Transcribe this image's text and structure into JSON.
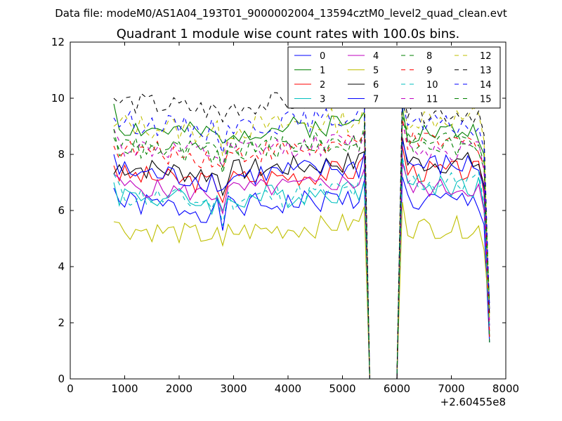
{
  "suptitle": "Data file: modeM0/AS1A04_193T01_9000002004_13594cztM0_level2_quad_clean.evt",
  "chart_data": {
    "type": "line",
    "title": "Quadrant 1 module wise count rates with 100.0s bins.",
    "xlabel": "",
    "ylabel": "",
    "x_offset_label": "+2.60455e8",
    "xlim": [
      0,
      8000
    ],
    "ylim": [
      0,
      12
    ],
    "x_ticks": [
      "0",
      "1000",
      "2000",
      "3000",
      "4000",
      "5000",
      "6000",
      "7000",
      "8000"
    ],
    "y_ticks": [
      "0",
      "2",
      "4",
      "6",
      "8",
      "10",
      "12"
    ],
    "legend_position": "top-right",
    "segments": [
      {
        "x_start": 800,
        "x_end": 5400,
        "step": 100
      },
      {
        "x_start": 5500,
        "x_end": 6000,
        "step": 100
      },
      {
        "x_start": 6100,
        "x_end": 7700,
        "step": 100
      }
    ],
    "series": [
      {
        "name": "0",
        "color": "#0000ff",
        "dash": "solid",
        "mean": 6.3,
        "amp": 0.45,
        "post_mean": 6.3,
        "start": 6.8,
        "seed": 1
      },
      {
        "name": "1",
        "color": "#008000",
        "dash": "solid",
        "mean": 9.0,
        "amp": 0.4,
        "post_mean": 8.8,
        "start": 9.8,
        "seed": 2
      },
      {
        "name": "2",
        "color": "#ff0000",
        "dash": "solid",
        "mean": 7.3,
        "amp": 0.4,
        "post_mean": 7.4,
        "start": 7.6,
        "seed": 3
      },
      {
        "name": "3",
        "color": "#00bfbf",
        "dash": "solid",
        "mean": 6.6,
        "amp": 0.45,
        "post_mean": 6.9,
        "start": 7.0,
        "seed": 4
      },
      {
        "name": "4",
        "color": "#bf00bf",
        "dash": "solid",
        "mean": 6.9,
        "amp": 0.35,
        "post_mean": 6.8,
        "start": 7.3,
        "seed": 5
      },
      {
        "name": "5",
        "color": "#bfbf00",
        "dash": "solid",
        "mean": 5.4,
        "amp": 0.4,
        "post_mean": 5.4,
        "start": 5.6,
        "seed": 6
      },
      {
        "name": "6",
        "color": "#000000",
        "dash": "solid",
        "mean": 7.6,
        "amp": 0.4,
        "post_mean": 7.7,
        "start": 7.3,
        "seed": 7
      },
      {
        "name": "7",
        "color": "#0000ff",
        "dash": "solid",
        "mean": 7.4,
        "amp": 0.45,
        "post_mean": 7.6,
        "start": 8.0,
        "seed": 8
      },
      {
        "name": "8",
        "color": "#008000",
        "dash": "dashed",
        "mean": 8.4,
        "amp": 0.4,
        "post_mean": 8.3,
        "start": 8.6,
        "seed": 9
      },
      {
        "name": "9",
        "color": "#ff0000",
        "dash": "dashed",
        "mean": 8.2,
        "amp": 0.4,
        "post_mean": 8.4,
        "start": 8.3,
        "seed": 10
      },
      {
        "name": "10",
        "color": "#00bfbf",
        "dash": "dashed",
        "mean": 6.6,
        "amp": 0.45,
        "post_mean": 7.0,
        "start": 7.3,
        "seed": 11
      },
      {
        "name": "11",
        "color": "#bf00bf",
        "dash": "dashed",
        "mean": 8.3,
        "amp": 0.4,
        "post_mean": 8.2,
        "start": 8.9,
        "seed": 12
      },
      {
        "name": "12",
        "color": "#bfbf00",
        "dash": "dashed",
        "mean": 9.1,
        "amp": 0.45,
        "post_mean": 9.3,
        "start": 9.0,
        "seed": 13
      },
      {
        "name": "13",
        "color": "#000000",
        "dash": "dashed",
        "mean": 9.9,
        "amp": 0.4,
        "post_mean": 9.5,
        "start": 10.0,
        "seed": 14
      },
      {
        "name": "14",
        "color": "#0000ff",
        "dash": "dashed",
        "mean": 9.2,
        "amp": 0.4,
        "post_mean": 9.0,
        "start": 9.3,
        "seed": 15
      },
      {
        "name": "15",
        "color": "#008000",
        "dash": "dashed",
        "mean": 8.3,
        "amp": 0.4,
        "post_mean": 8.5,
        "start": 8.9,
        "seed": 16
      }
    ]
  }
}
